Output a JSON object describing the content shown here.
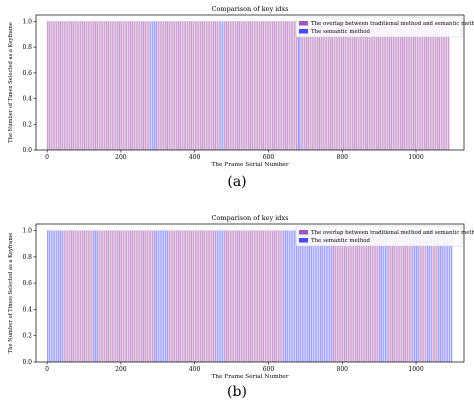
{
  "panels": [
    {
      "label": "(a)",
      "chart_data": {
        "type": "bar",
        "title": "Comparison of key idxs",
        "xlabel": "The Frame Serial Number",
        "ylabel": "The Number of Times Selected as a Keyframe",
        "xlim": [
          -30,
          1130
        ],
        "ylim": [
          0,
          1.05
        ],
        "xticks": [
          0,
          200,
          400,
          600,
          800,
          1000
        ],
        "yticks": [
          0.0,
          0.2,
          0.4,
          0.6,
          0.8,
          1.0
        ],
        "legend_position": "top-right",
        "grid": false,
        "series": [
          {
            "name": "The overlap between traditional method and semantic method",
            "color": "#9b59b6",
            "value": 1.0,
            "ranges": [
              [
                0,
                280
              ],
              [
                300,
                470
              ],
              [
                480,
                682
              ],
              [
                692,
                1090
              ]
            ]
          },
          {
            "name": "The semantic method",
            "color": "#4a4aff",
            "value": 1.0,
            "ranges": [
              [
                280,
                300
              ],
              [
                470,
                480
              ],
              [
                682,
                692
              ]
            ]
          }
        ]
      }
    },
    {
      "label": "(b)",
      "chart_data": {
        "type": "bar",
        "title": "Comparison of key idxs",
        "xlabel": "The Frame Serial Number",
        "ylabel": "The Number of Times Selected as a Keyframe",
        "xlim": [
          -30,
          1130
        ],
        "ylim": [
          0,
          1.05
        ],
        "xticks": [
          0,
          200,
          400,
          600,
          800,
          1000
        ],
        "yticks": [
          0.0,
          0.2,
          0.4,
          0.6,
          0.8,
          1.0
        ],
        "legend_position": "top-right",
        "grid": false,
        "series": [
          {
            "name": "The overlap between traditional method and semantic method",
            "color": "#9b59b6",
            "value": 1.0,
            "ranges": [
              [
                45,
                125
              ],
              [
                140,
                290
              ],
              [
                330,
                460
              ],
              [
                480,
                640
              ],
              [
                775,
                900
              ],
              [
                925,
                990
              ],
              [
                1010,
                1030
              ],
              [
                1045,
                1060
              ]
            ]
          },
          {
            "name": "The semantic method",
            "color": "#4a4aff",
            "value": 1.0,
            "ranges": [
              [
                0,
                45
              ],
              [
                125,
                140
              ],
              [
                290,
                330
              ],
              [
                460,
                480
              ],
              [
                640,
                775
              ],
              [
                900,
                925
              ],
              [
                990,
                1010
              ],
              [
                1030,
                1045
              ],
              [
                1060,
                1100
              ]
            ]
          }
        ]
      }
    }
  ]
}
